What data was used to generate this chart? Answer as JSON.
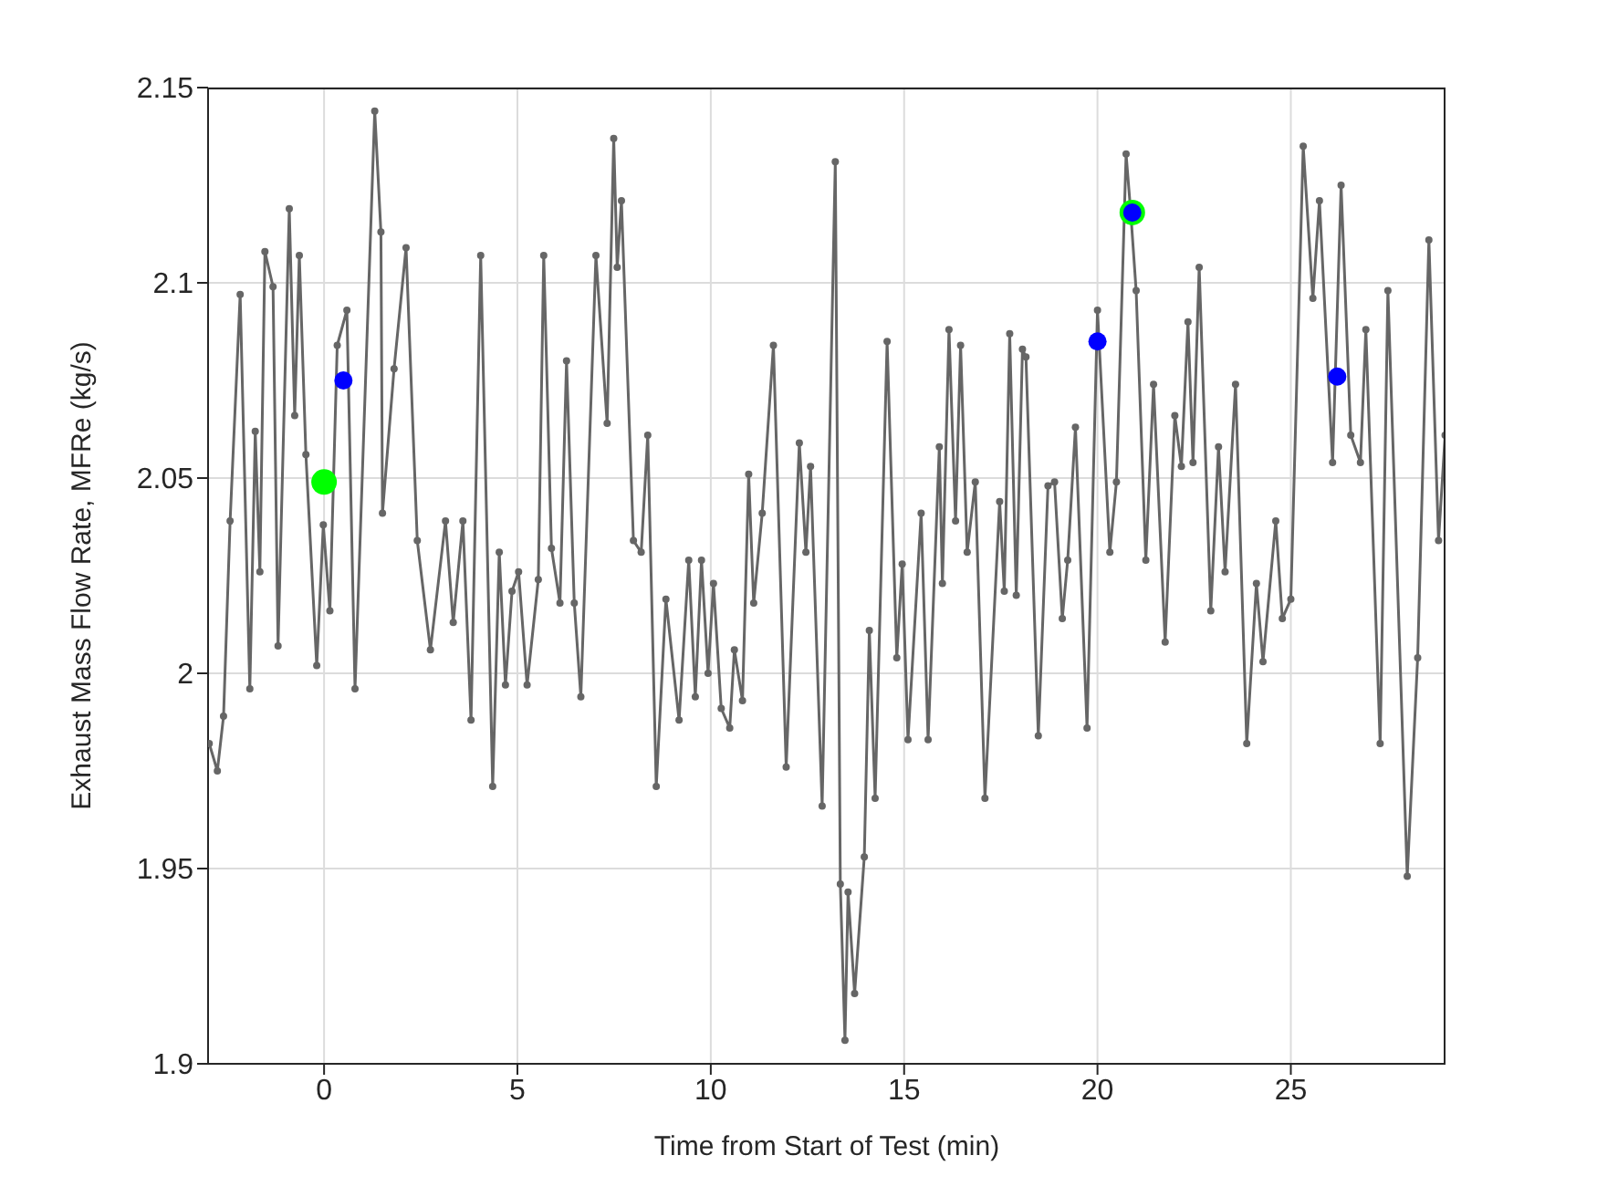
{
  "chart_data": {
    "type": "line",
    "xlabel": "Time from Start of Test (min)",
    "ylabel": "Exhaust Mass Flow Rate, MFRe (kg/s)",
    "xlim": [
      -3,
      29
    ],
    "xticks": [
      0,
      5,
      10,
      15,
      20,
      25
    ],
    "ylim": [
      1.9,
      2.15
    ],
    "yticks": [
      1.9,
      1.95,
      2,
      2.05,
      2.1,
      2.15
    ],
    "grid": true,
    "legend": false,
    "series": [
      {
        "color": "#666666",
        "marker": "circle",
        "line_style": "solid",
        "x": [
          -2.97,
          -2.76,
          -2.6,
          -2.43,
          -2.17,
          -1.92,
          -1.78,
          -1.66,
          -1.53,
          -1.32,
          -1.19,
          -0.9,
          -0.76,
          -0.64,
          -0.47,
          -0.19,
          -0.02,
          0.15,
          0.34,
          0.59,
          0.8,
          1.31,
          1.47,
          1.51,
          1.81,
          2.12,
          2.41,
          2.75,
          3.14,
          3.34,
          3.59,
          3.8,
          4.05,
          4.36,
          4.53,
          4.69,
          4.86,
          5.03,
          5.25,
          5.54,
          5.68,
          5.88,
          6.1,
          6.27,
          6.47,
          6.64,
          7.03,
          7.32,
          7.49,
          7.58,
          7.69,
          8.0,
          8.2,
          8.37,
          8.59,
          8.84,
          9.18,
          9.43,
          9.6,
          9.76,
          9.93,
          10.07,
          10.27,
          10.49,
          10.61,
          10.82,
          10.98,
          11.11,
          11.33,
          11.62,
          11.95,
          12.29,
          12.46,
          12.58,
          12.88,
          13.22,
          13.35,
          13.47,
          13.55,
          13.72,
          13.97,
          14.1,
          14.25,
          14.56,
          14.81,
          14.95,
          15.1,
          15.44,
          15.62,
          15.91,
          15.99,
          16.16,
          16.33,
          16.46,
          16.63,
          16.84,
          17.09,
          17.47,
          17.59,
          17.73,
          17.9,
          18.06,
          18.15,
          18.47,
          18.72,
          18.89,
          19.09,
          19.23,
          19.43,
          19.73,
          20.0,
          20.32,
          20.49,
          20.74,
          20.86,
          21.0,
          21.25,
          21.45,
          21.75,
          22.0,
          22.17,
          22.34,
          22.47,
          22.63,
          22.93,
          23.13,
          23.3,
          23.57,
          23.86,
          24.11,
          24.28,
          24.61,
          24.78,
          25.0,
          25.32,
          25.57,
          25.74,
          26.08,
          26.3,
          26.55,
          26.8,
          26.94,
          27.31,
          27.51,
          28.01,
          28.28,
          28.57,
          28.82,
          28.99
        ],
        "values": [
          1.982,
          1.975,
          1.989,
          2.039,
          2.097,
          1.996,
          2.062,
          2.026,
          2.108,
          2.099,
          2.007,
          2.119,
          2.066,
          2.107,
          2.056,
          2.002,
          2.038,
          2.016,
          2.084,
          2.093,
          1.996,
          2.144,
          2.113,
          2.041,
          2.078,
          2.109,
          2.034,
          2.006,
          2.039,
          2.013,
          2.039,
          1.988,
          2.107,
          1.971,
          2.031,
          1.997,
          2.021,
          2.026,
          1.997,
          2.024,
          2.107,
          2.032,
          2.018,
          2.08,
          2.018,
          1.994,
          2.107,
          2.064,
          2.137,
          2.104,
          2.121,
          2.034,
          2.031,
          2.061,
          1.971,
          2.019,
          1.988,
          2.029,
          1.994,
          2.029,
          2.0,
          2.023,
          1.991,
          1.986,
          2.006,
          1.993,
          2.051,
          2.018,
          2.041,
          2.084,
          1.976,
          2.059,
          2.031,
          2.053,
          1.966,
          2.131,
          1.946,
          1.906,
          1.944,
          1.918,
          1.953,
          2.011,
          1.968,
          2.085,
          2.004,
          2.028,
          1.983,
          2.041,
          1.983,
          2.058,
          2.023,
          2.088,
          2.039,
          2.084,
          2.031,
          2.049,
          1.968,
          2.044,
          2.021,
          2.087,
          2.02,
          2.083,
          2.081,
          1.984,
          2.048,
          2.049,
          2.014,
          2.029,
          2.063,
          1.986,
          2.093,
          2.031,
          2.049,
          2.133,
          2.118,
          2.098,
          2.029,
          2.074,
          2.008,
          2.066,
          2.053,
          2.09,
          2.054,
          2.104,
          2.016,
          2.058,
          2.026,
          2.074,
          1.982,
          2.023,
          2.003,
          2.039,
          2.014,
          2.019,
          2.135,
          2.096,
          2.121,
          2.054,
          2.125,
          2.061,
          2.054,
          2.088,
          1.982,
          2.098,
          1.948,
          2.004,
          2.111,
          2.034,
          2.061
        ]
      },
      {
        "type": "scatter",
        "color": "#00ff00",
        "marker": "circle",
        "x": [
          0,
          20.9
        ],
        "values": [
          2.049,
          2.118
        ]
      },
      {
        "type": "scatter",
        "color": "#0000ff",
        "marker": "circle",
        "x": [
          0.5,
          20,
          20.9,
          26.2
        ],
        "values": [
          2.075,
          2.085,
          2.118,
          2.076
        ]
      }
    ]
  }
}
